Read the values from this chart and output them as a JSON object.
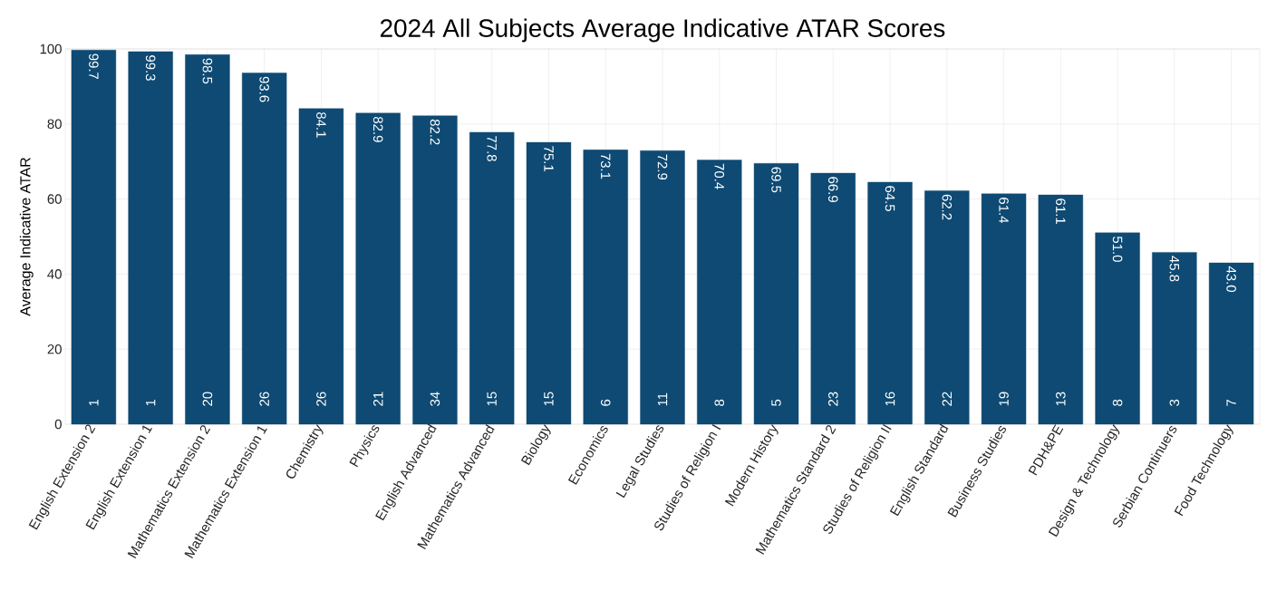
{
  "chart_data": {
    "type": "bar",
    "title": "2024 All Subjects Average Indicative ATAR Scores",
    "ylabel": "Average Indicative ATAR",
    "categories": [
      "English Extension 2",
      "English Extension 1",
      "Mathematics Extension 2",
      "Mathematics Extension 1",
      "Chemistry",
      "Physics",
      "English Advanced",
      "Mathematics Advanced",
      "Biology",
      "Economics",
      "Legal Studies",
      "Studies of Religion I",
      "Modern History",
      "Mathematics Standard 2",
      "Studies of Religion II",
      "English Standard",
      "Business Studies",
      "PDH&PE",
      "Design & Technology",
      "Serbian Continuers",
      "Food Technology"
    ],
    "values": [
      99.7,
      99.3,
      98.5,
      93.6,
      84.1,
      82.9,
      82.2,
      77.8,
      75.1,
      73.1,
      72.9,
      70.4,
      69.5,
      66.9,
      64.5,
      62.2,
      61.4,
      61.1,
      51.0,
      45.8,
      43.0
    ],
    "value_labels": [
      "99.7",
      "99.3",
      "98.5",
      "93.6",
      "84.1",
      "82.9",
      "82.2",
      "77.8",
      "75.1",
      "73.1",
      "72.9",
      "70.4",
      "69.5",
      "66.9",
      "64.5",
      "62.2",
      "61.4",
      "61.1",
      "51.0",
      "45.8",
      "43.0"
    ],
    "color": "#0e4a73",
    "ylim": [
      0,
      100
    ],
    "yticks": [
      0,
      20,
      40,
      60,
      80,
      100
    ],
    "grid": true,
    "annotations": [
      "1",
      "1",
      "20",
      "26",
      "26",
      "21",
      "34",
      "15",
      "15",
      "6",
      "11",
      "8",
      "5",
      "23",
      "16",
      "22",
      "19",
      "13",
      "8",
      "3",
      "7"
    ]
  }
}
